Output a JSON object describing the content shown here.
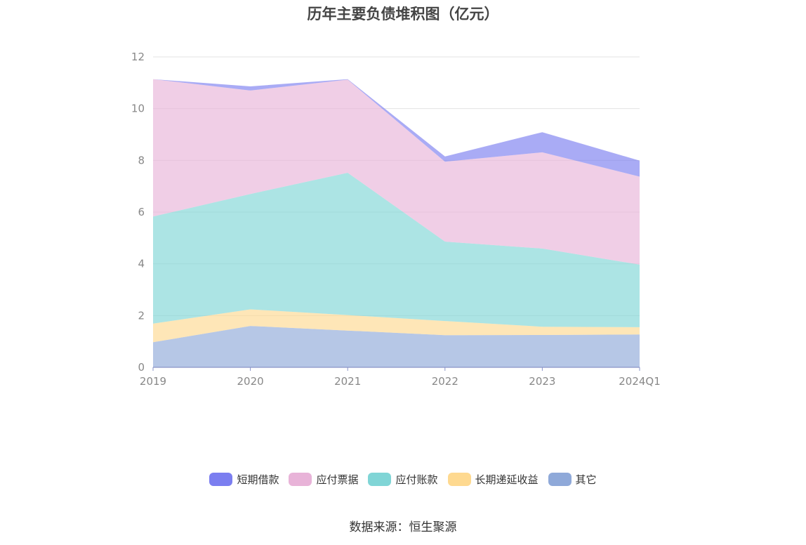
{
  "chart_data": {
    "type": "area",
    "stacked": true,
    "title": "历年主要负债堆积图（亿元）",
    "categories": [
      "2019",
      "2020",
      "2021",
      "2022",
      "2023",
      "2024Q1"
    ],
    "ylim": [
      0,
      12
    ],
    "yticks": [
      0,
      2,
      4,
      6,
      8,
      10,
      12
    ],
    "grid": true,
    "legend_position": "bottom",
    "series": [
      {
        "name": "其它",
        "color": "#8fa9d9",
        "values": [
          0.97,
          1.6,
          1.42,
          1.24,
          1.25,
          1.27
        ]
      },
      {
        "name": "长期递延收益",
        "color": "#fed990",
        "values": [
          0.72,
          0.64,
          0.6,
          0.55,
          0.32,
          0.28
        ]
      },
      {
        "name": "应付账款",
        "color": "#80d5d6",
        "values": [
          4.14,
          4.46,
          5.5,
          3.07,
          3.02,
          2.42
        ]
      },
      {
        "name": "应付票据",
        "color": "#e8b3d8",
        "values": [
          5.31,
          4.0,
          3.6,
          3.09,
          3.72,
          3.4
        ]
      },
      {
        "name": "短期借款",
        "color": "#7b7ef0",
        "values": [
          0.0,
          0.16,
          0.02,
          0.2,
          0.78,
          0.62
        ]
      }
    ],
    "legend_order": [
      "短期借款",
      "应付票据",
      "应付账款",
      "长期递延收益",
      "其它"
    ]
  },
  "source_text": "数据来源：恒生聚源"
}
